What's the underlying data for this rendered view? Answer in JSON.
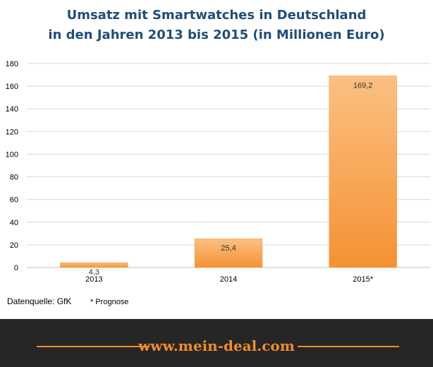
{
  "chart_data": {
    "type": "bar",
    "title": "Umsatz mit Smartwatches in Deutschland in den Jahren 2013 bis 2015 (in Millionen Euro)",
    "title_lines": [
      "Umsatz mit Smartwatches in Deutschland",
      "in den Jahren 2013 bis 2015 (in Millionen Euro)"
    ],
    "categories": [
      "2013",
      "2014",
      "2015*"
    ],
    "values": [
      4.3,
      25.4,
      169.2
    ],
    "data_labels": [
      "4,3",
      "25,4",
      "169,2"
    ],
    "ylim": [
      0,
      180
    ],
    "yticks": [
      0,
      20,
      40,
      60,
      80,
      100,
      120,
      140,
      160,
      180
    ],
    "grid": true,
    "bar_color_top": "#fbc083",
    "bar_color_bottom": "#f59232"
  },
  "source": "Datenquelle: GfK",
  "note": "* Prognose",
  "footer": {
    "brand": "www.mein-deal.com",
    "accent_color": "#f08c28"
  }
}
